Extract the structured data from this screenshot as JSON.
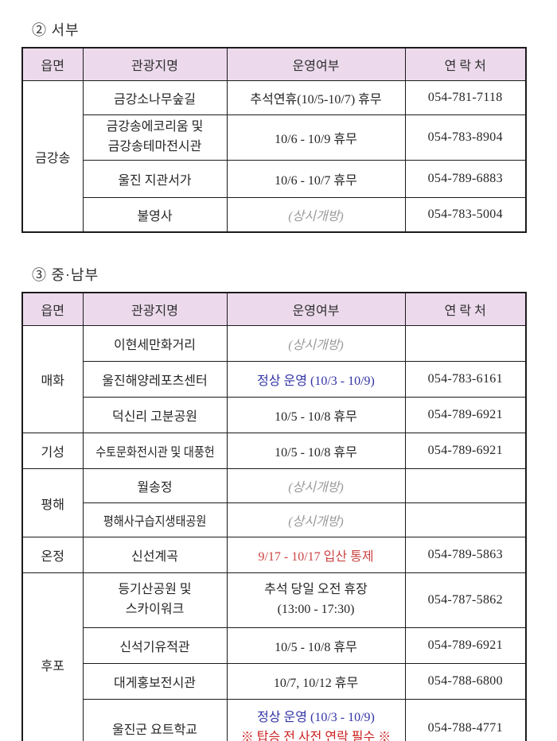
{
  "colors": {
    "header_bg": "#ecdaec",
    "border": "#1b1b1b",
    "text": "#262626",
    "open_gray": "#9a9a9a",
    "normal_operation_blue": "#3333a6",
    "closed_red": "#cc4444",
    "alert_red": "#cc2222"
  },
  "t1": {
    "heading": "② 서부",
    "headers": {
      "h1": "읍면",
      "h2": "관광지명",
      "h3": "운영여부",
      "h4": "연 락 처"
    },
    "region1": "금강송",
    "r1": {
      "name": "금강소나무숲길",
      "status": "추석연휴(10/5-10/7) 휴무",
      "phone": "054-781-7118"
    },
    "r2": {
      "name1": "금강송에코리움 및",
      "name2": "금강송테마전시관",
      "status": "10/6 - 10/9 휴무",
      "phone": "054-783-8904"
    },
    "r3": {
      "name": "울진 지관서가",
      "status": "10/6 - 10/7 휴무",
      "phone": "054-789-6883"
    },
    "r4": {
      "name": "불영사",
      "status": "(상시개방)",
      "phone": "054-783-5004"
    }
  },
  "t2": {
    "heading": "③ 중·남부",
    "headers": {
      "h1": "읍면",
      "h2": "관광지명",
      "h3": "운영여부",
      "h4": "연 락 처"
    },
    "region_maehwa": "매화",
    "region_giseong": "기성",
    "region_pyeonghae": "평해",
    "region_onjeong": "온정",
    "region_hupo": "후포",
    "r1": {
      "name": "이현세만화거리",
      "status": "(상시개방)",
      "phone": ""
    },
    "r2": {
      "name": "울진해양레포츠센터",
      "status": "정상 운영 (10/3 - 10/9)",
      "phone": "054-783-6161"
    },
    "r3": {
      "name": "덕신리 고분공원",
      "status": "10/5 - 10/8 휴무",
      "phone": "054-789-6921"
    },
    "r4": {
      "name": "수토문화전시관 및 대풍헌",
      "status": "10/5 - 10/8 휴무",
      "phone": "054-789-6921"
    },
    "r5": {
      "name": "월송정",
      "status": "(상시개방)",
      "phone": ""
    },
    "r6": {
      "name": "평해사구습지생태공원",
      "status": "(상시개방)",
      "phone": ""
    },
    "r7": {
      "name": "신선계곡",
      "status": "9/17 - 10/17 입산 통제",
      "phone": "054-789-5863"
    },
    "r8": {
      "name1": "등기산공원 및",
      "name2": "스카이워크",
      "status1": "추석 당일 오전 휴장",
      "status2": "(13:00 - 17:30)",
      "phone": "054-787-5862"
    },
    "r9": {
      "name": "신석기유적관",
      "status": "10/5 - 10/8 휴무",
      "phone": "054-789-6921"
    },
    "r10": {
      "name": "대게홍보전시관",
      "status": "10/7, 10/12 휴무",
      "phone": "054-788-6800"
    },
    "r11": {
      "name": "울진군 요트학교",
      "status1": "정상 운영 (10/3 - 10/9)",
      "status2": "※ 탑승 전 사전 연락 필수 ※",
      "phone": "054-788-4771"
    }
  }
}
